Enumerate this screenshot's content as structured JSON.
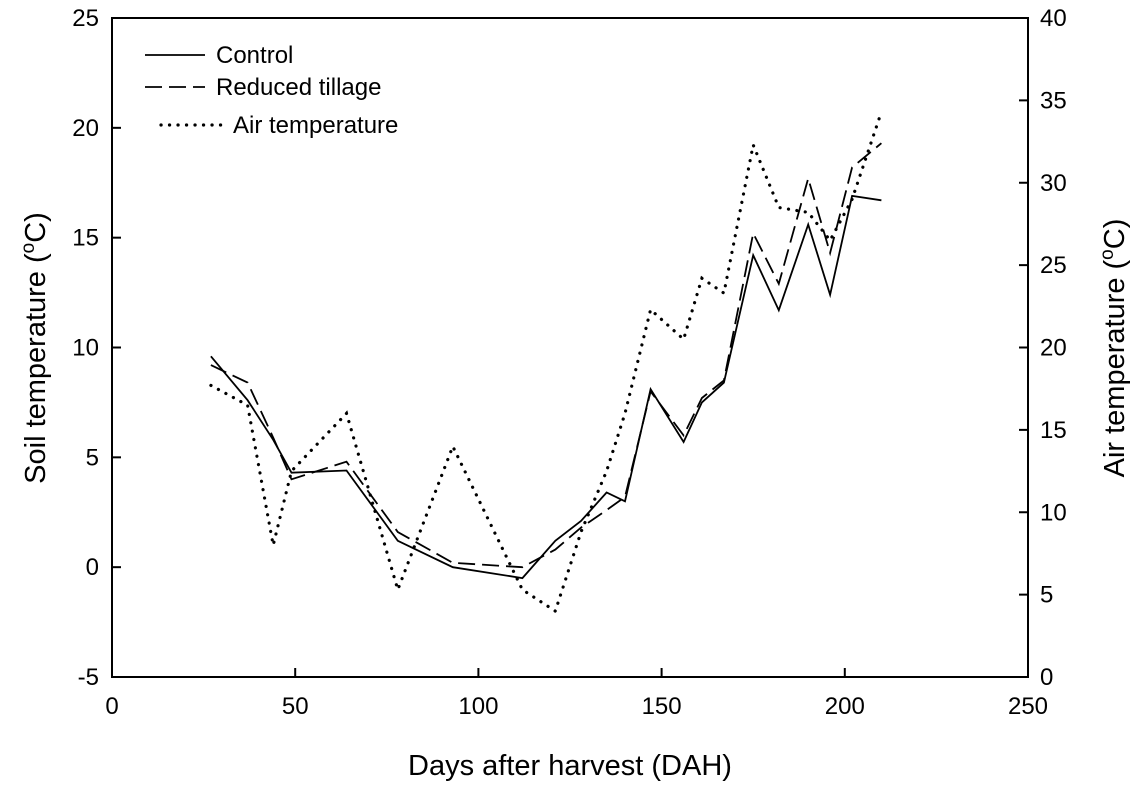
{
  "chart_data": {
    "type": "line",
    "x": [
      27,
      37,
      44,
      49,
      64,
      78,
      93,
      112,
      121,
      128,
      135,
      140,
      147,
      156,
      161,
      167,
      175,
      182,
      190,
      196,
      202,
      210
    ],
    "series": [
      {
        "name": "Control",
        "axis": "left",
        "style": "solid",
        "values": [
          9.6,
          7.6,
          5.8,
          4.3,
          4.4,
          1.2,
          0.0,
          -0.5,
          1.2,
          2.1,
          3.4,
          3.0,
          8.1,
          5.7,
          7.5,
          8.4,
          14.2,
          11.7,
          15.6,
          12.4,
          16.9,
          16.7
        ]
      },
      {
        "name": "Reduced tillage",
        "axis": "left",
        "style": "dashed",
        "values": [
          9.2,
          8.4,
          5.9,
          4.0,
          4.8,
          1.6,
          0.2,
          0.0,
          0.8,
          1.8,
          2.6,
          3.2,
          8.0,
          6.0,
          7.7,
          8.5,
          15.2,
          12.9,
          17.7,
          14.3,
          18.2,
          19.3
        ]
      },
      {
        "name": "Air temperature",
        "axis": "right",
        "style": "dotted",
        "values": [
          17.7,
          16.5,
          8.0,
          12.5,
          16.0,
          5.3,
          14.0,
          5.3,
          4.0,
          8.8,
          12.5,
          16.0,
          22.3,
          20.5,
          24.2,
          23.3,
          32.3,
          28.5,
          28.2,
          26.5,
          29.0,
          34.3
        ]
      }
    ],
    "title": "",
    "xlabel": "Days after harvest (DAH)",
    "ylabel": "Soil temperature (°C)",
    "ylabel_prefix": "Soil temperature (",
    "ylabel_suffix": "C)",
    "y2label_prefix": "Air temperature (",
    "y2label_suffix": "C)",
    "degree_symbol": "o",
    "xlim": [
      0,
      250
    ],
    "ylim": [
      -5,
      25
    ],
    "y2lim": [
      0,
      40
    ],
    "xticks": [
      "0",
      "50",
      "100",
      "150",
      "200",
      "250"
    ],
    "yticks": [
      "-5",
      "0",
      "5",
      "10",
      "15",
      "20",
      "25"
    ],
    "y2ticks": [
      "0",
      "5",
      "10",
      "15",
      "20",
      "25",
      "30",
      "35",
      "40"
    ],
    "grid": false,
    "legend_position": "top-left"
  }
}
